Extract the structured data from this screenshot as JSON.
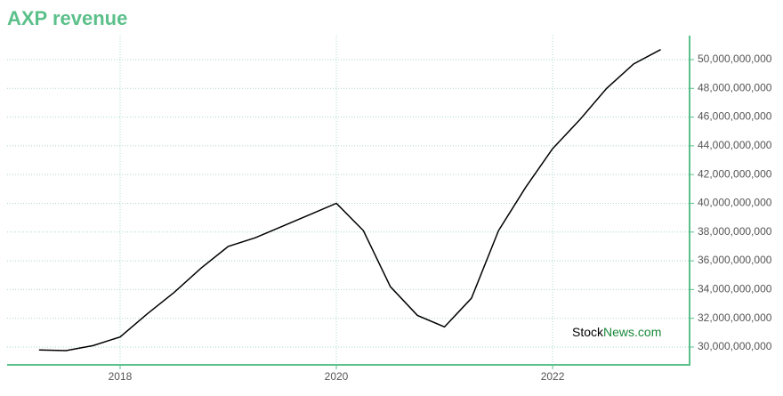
{
  "chart_data": {
    "type": "line",
    "title": "AXP revenue",
    "x": [
      2017.25,
      2017.5,
      2017.75,
      2018.0,
      2018.25,
      2018.5,
      2018.75,
      2019.0,
      2019.25,
      2019.5,
      2019.75,
      2020.0,
      2020.25,
      2020.5,
      2020.75,
      2021.0,
      2021.25,
      2021.5,
      2021.75,
      2022.0,
      2022.25,
      2022.5,
      2022.75,
      2023.0
    ],
    "series": [
      {
        "color": "#000000",
        "values": [
          29800000000,
          29750000000,
          30100000000,
          30700000000,
          32300000000,
          33800000000,
          35500000000,
          37000000000,
          37600000000,
          38400000000,
          39200000000,
          40000000000,
          38100000000,
          34200000000,
          32200000000,
          31400000000,
          33400000000,
          38100000000,
          41100000000,
          43800000000,
          45800000000,
          48000000000,
          49700000000,
          50700000000
        ]
      }
    ],
    "xlim": [
      2016.955,
      2023.267
    ],
    "xticks": [
      2018,
      2020,
      2022
    ],
    "ylim": [
      28760000000,
      51670000000
    ],
    "yticks": [
      {
        "value": 30000000000,
        "label": "30,000,000,000"
      },
      {
        "value": 32000000000,
        "label": "32,000,000,000"
      },
      {
        "value": 34000000000,
        "label": "34,000,000,000"
      },
      {
        "value": 36000000000,
        "label": "36,000,000,000"
      },
      {
        "value": 38000000000,
        "label": "38,000,000,000"
      },
      {
        "value": 40000000000,
        "label": "40,000,000,000"
      },
      {
        "value": 42000000000,
        "label": "42,000,000,000"
      },
      {
        "value": 44000000000,
        "label": "44,000,000,000"
      },
      {
        "value": 46000000000,
        "label": "46,000,000,000"
      },
      {
        "value": 48000000000,
        "label": "48,000,000,000"
      },
      {
        "value": 50000000000,
        "label": "50,000,000,000"
      }
    ],
    "grid": true,
    "axis_color": "#5cc08a",
    "grid_color": "#a8d8cf"
  },
  "watermark": {
    "first": "Stock",
    "second": "News.com"
  }
}
